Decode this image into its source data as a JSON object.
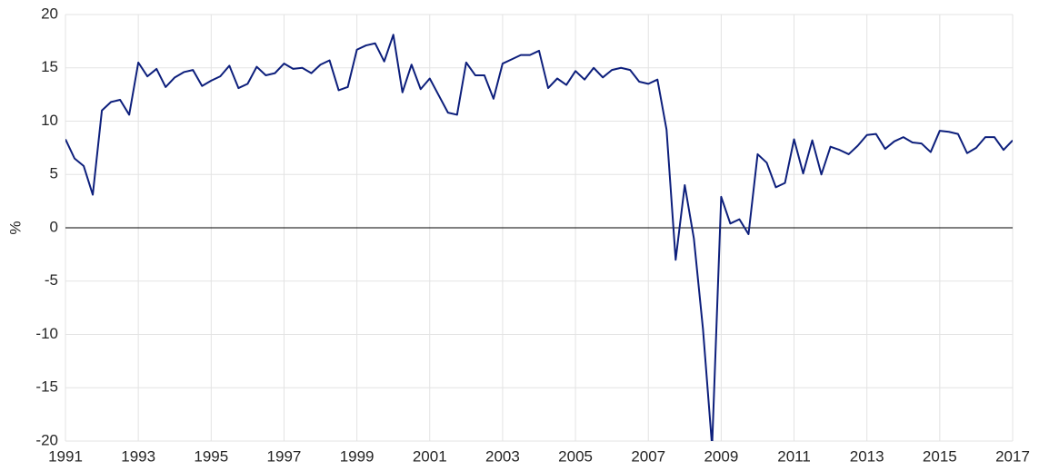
{
  "chart_data": {
    "type": "line",
    "y_label": "%",
    "x": [
      1991,
      1991.25,
      1991.5,
      1991.75,
      1992,
      1992.25,
      1992.5,
      1992.75,
      1993,
      1993.25,
      1993.5,
      1993.75,
      1994,
      1994.25,
      1994.5,
      1994.75,
      1995,
      1995.25,
      1995.5,
      1995.75,
      1996,
      1996.25,
      1996.5,
      1996.75,
      1997,
      1997.25,
      1997.5,
      1997.75,
      1998,
      1998.25,
      1998.5,
      1998.75,
      1999,
      1999.25,
      1999.5,
      1999.75,
      2000,
      2000.25,
      2000.5,
      2000.75,
      2001,
      2001.25,
      2001.5,
      2001.75,
      2002,
      2002.25,
      2002.5,
      2002.75,
      2003,
      2003.25,
      2003.5,
      2003.75,
      2004,
      2004.25,
      2004.5,
      2004.75,
      2005,
      2005.25,
      2005.5,
      2005.75,
      2006,
      2006.25,
      2006.5,
      2006.75,
      2007,
      2007.25,
      2007.5,
      2007.75,
      2008,
      2008.25,
      2008.5,
      2008.75,
      2009,
      2009.25,
      2009.5,
      2009.75,
      2010,
      2010.25,
      2010.5,
      2010.75,
      2011,
      2011.25,
      2011.5,
      2011.75,
      2012,
      2012.25,
      2012.5,
      2012.75,
      2013,
      2013.25,
      2013.5,
      2013.75,
      2014,
      2014.25,
      2014.5,
      2014.75,
      2015,
      2015.25,
      2015.5,
      2015.75,
      2016,
      2016.25,
      2016.5,
      2016.75,
      2017
    ],
    "series": [
      {
        "color": "#0d1f7c",
        "values": [
          8.3,
          6.5,
          5.8,
          3.1,
          11.0,
          11.8,
          12.0,
          10.6,
          15.5,
          14.2,
          14.9,
          13.2,
          14.1,
          14.6,
          14.8,
          13.3,
          13.8,
          14.2,
          15.2,
          13.1,
          13.5,
          15.1,
          14.3,
          14.5,
          15.4,
          14.9,
          15.0,
          14.5,
          15.3,
          15.7,
          12.9,
          13.2,
          16.7,
          17.1,
          17.3,
          15.6,
          18.1,
          12.7,
          15.3,
          13.0,
          14.0,
          12.4,
          10.8,
          10.6,
          15.5,
          14.3,
          14.3,
          12.1,
          15.4,
          15.8,
          16.2,
          16.2,
          16.6,
          13.1,
          14.0,
          13.4,
          14.7,
          13.9,
          15.0,
          14.1,
          14.8,
          15.0,
          14.8,
          13.7,
          13.5,
          13.9,
          9.2,
          -3.0,
          4.0,
          -1.0,
          -9.5,
          -20.5,
          2.9,
          0.4,
          0.8,
          -0.6,
          6.9,
          6.1,
          3.8,
          4.2,
          8.3,
          5.1,
          8.2,
          5.0,
          7.6,
          7.3,
          6.9,
          7.7,
          8.7,
          8.8,
          7.4,
          8.1,
          8.5,
          8.0,
          7.9,
          7.1,
          9.1,
          9.0,
          8.8,
          7.0,
          7.5,
          8.5,
          8.5,
          7.3,
          8.2
        ]
      }
    ],
    "xlim": [
      1991,
      2017
    ],
    "xticks": [
      1991,
      1993,
      1995,
      1997,
      1999,
      2001,
      2003,
      2005,
      2007,
      2009,
      2011,
      2013,
      2015,
      2017
    ],
    "ylim": [
      -20,
      20
    ],
    "yticks": [
      -20,
      -15,
      -10,
      -5,
      0,
      5,
      10,
      15,
      20
    ],
    "hline": 0,
    "grid": true
  }
}
